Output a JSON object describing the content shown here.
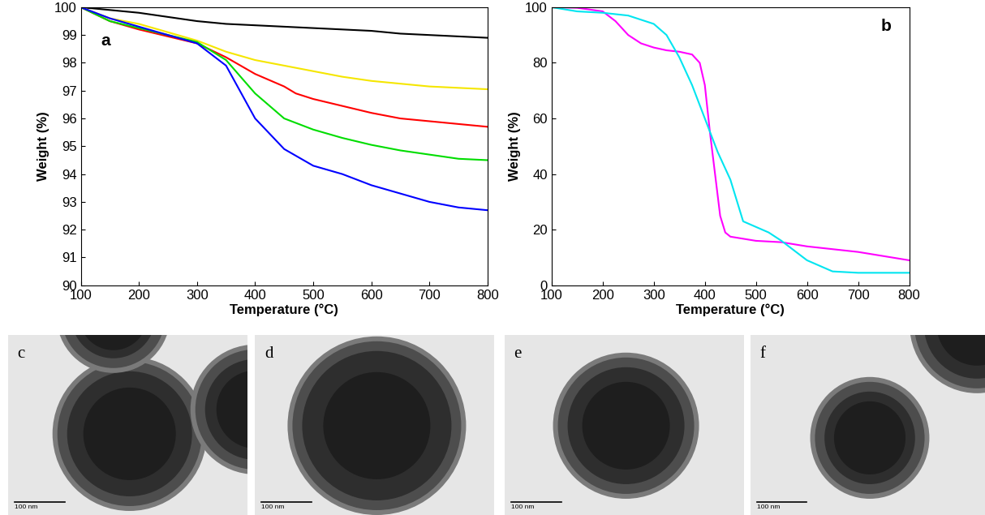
{
  "chart_data": [
    {
      "type": "line",
      "annotation": "a",
      "x_label": "Temperature (°C)",
      "y_label": "Weight (%)",
      "xlim": [
        100,
        800
      ],
      "xticks": [
        100,
        200,
        300,
        400,
        500,
        600,
        700,
        800
      ],
      "ylim": [
        90,
        100
      ],
      "yticks": [
        90,
        91,
        92,
        93,
        94,
        95,
        96,
        97,
        98,
        99,
        100
      ],
      "series": [
        {
          "color": "#000000",
          "x": [
            100,
            150,
            200,
            250,
            300,
            350,
            400,
            450,
            500,
            550,
            600,
            650,
            700,
            750,
            800
          ],
          "values": [
            100,
            99.9,
            99.8,
            99.65,
            99.5,
            99.4,
            99.35,
            99.3,
            99.25,
            99.2,
            99.15,
            99.05,
            99.0,
            98.95,
            98.9
          ]
        },
        {
          "color": "#f5e600",
          "x": [
            100,
            150,
            200,
            250,
            300,
            350,
            400,
            450,
            500,
            550,
            600,
            650,
            700,
            750,
            800
          ],
          "values": [
            100,
            99.6,
            99.4,
            99.1,
            98.8,
            98.4,
            98.1,
            97.9,
            97.7,
            97.5,
            97.35,
            97.25,
            97.15,
            97.1,
            97.05
          ]
        },
        {
          "color": "#ff0000",
          "x": [
            100,
            150,
            200,
            250,
            300,
            350,
            400,
            450,
            470,
            500,
            550,
            600,
            650,
            700,
            750,
            800
          ],
          "values": [
            100,
            99.5,
            99.2,
            98.95,
            98.7,
            98.2,
            97.6,
            97.15,
            96.9,
            96.7,
            96.45,
            96.2,
            96.0,
            95.9,
            95.8,
            95.7
          ]
        },
        {
          "color": "#00dd00",
          "x": [
            100,
            150,
            200,
            250,
            300,
            350,
            400,
            450,
            500,
            550,
            600,
            650,
            700,
            750,
            800
          ],
          "values": [
            100,
            99.5,
            99.25,
            99.0,
            98.75,
            98.1,
            96.9,
            96.0,
            95.6,
            95.3,
            95.05,
            94.85,
            94.7,
            94.55,
            94.5
          ]
        },
        {
          "color": "#0000ff",
          "x": [
            100,
            150,
            200,
            250,
            300,
            350,
            400,
            450,
            500,
            550,
            600,
            650,
            700,
            750,
            800
          ],
          "values": [
            100,
            99.6,
            99.3,
            99.0,
            98.7,
            97.9,
            96.0,
            94.9,
            94.3,
            94.0,
            93.6,
            93.3,
            93.0,
            92.8,
            92.7
          ]
        }
      ]
    },
    {
      "type": "line",
      "annotation": "b",
      "x_label": "Temperature (°C)",
      "y_label": "Weight (%)",
      "xlim": [
        100,
        800
      ],
      "xticks": [
        100,
        200,
        300,
        400,
        500,
        600,
        700,
        800
      ],
      "ylim": [
        0,
        100
      ],
      "yticks": [
        0,
        20,
        40,
        60,
        80,
        100
      ],
      "series": [
        {
          "color": "#ff00ff",
          "x": [
            100,
            150,
            200,
            225,
            250,
            275,
            300,
            325,
            350,
            375,
            390,
            400,
            410,
            420,
            430,
            440,
            450,
            500,
            550,
            600,
            650,
            700,
            750,
            800
          ],
          "values": [
            100,
            99.8,
            98.5,
            95,
            90,
            87,
            85.5,
            84.5,
            84,
            83,
            80,
            72,
            55,
            40,
            25,
            19,
            17.5,
            16,
            15.5,
            14,
            13,
            12,
            10.5,
            9
          ]
        },
        {
          "color": "#00e5f0",
          "x": [
            100,
            150,
            200,
            250,
            300,
            325,
            350,
            375,
            400,
            425,
            450,
            460,
            475,
            500,
            525,
            550,
            600,
            650,
            700,
            800
          ],
          "values": [
            100,
            98.5,
            98,
            97,
            94,
            90,
            82,
            72,
            60,
            48,
            38,
            32,
            23,
            21,
            19,
            16,
            9,
            5,
            4.5,
            4.5
          ]
        }
      ]
    }
  ],
  "micrographs": [
    {
      "label": "c",
      "scale_bar": "100 nm"
    },
    {
      "label": "d",
      "scale_bar": "100 nm"
    },
    {
      "label": "e",
      "scale_bar": "100 nm"
    },
    {
      "label": "f",
      "scale_bar": "100 nm"
    }
  ]
}
